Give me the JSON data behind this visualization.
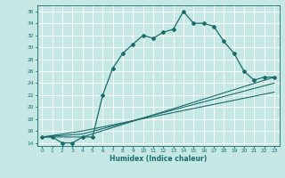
{
  "title": "",
  "xlabel": "Humidex (Indice chaleur)",
  "xlim": [
    -0.5,
    23.5
  ],
  "ylim": [
    13.5,
    37
  ],
  "yticks": [
    14,
    16,
    18,
    20,
    22,
    24,
    26,
    28,
    30,
    32,
    34,
    36
  ],
  "xticks": [
    0,
    1,
    2,
    3,
    4,
    5,
    6,
    7,
    8,
    9,
    10,
    11,
    12,
    13,
    14,
    15,
    16,
    17,
    18,
    19,
    20,
    21,
    22,
    23
  ],
  "bg_color": "#c5e8e5",
  "line_color": "#1a6b6b",
  "grid_color": "#ffffff",
  "line1_x": [
    0,
    1,
    2,
    3,
    4,
    5,
    6,
    7,
    8,
    9,
    10,
    11,
    12,
    13,
    14,
    15,
    16,
    17,
    18,
    19,
    20,
    21,
    22,
    23
  ],
  "line1_y": [
    15,
    15,
    14,
    14,
    15,
    15,
    22,
    26.5,
    29,
    30.5,
    32,
    31.5,
    32.5,
    33,
    36,
    34,
    34,
    33.5,
    31,
    29,
    26,
    24.5,
    25,
    25
  ],
  "line2_x": [
    0,
    4,
    23
  ],
  "line2_y": [
    15,
    15,
    25
  ],
  "line3_x": [
    0,
    4,
    23
  ],
  "line3_y": [
    15,
    15.5,
    24
  ],
  "line4_x": [
    0,
    4,
    23
  ],
  "line4_y": [
    15,
    16,
    22.5
  ]
}
